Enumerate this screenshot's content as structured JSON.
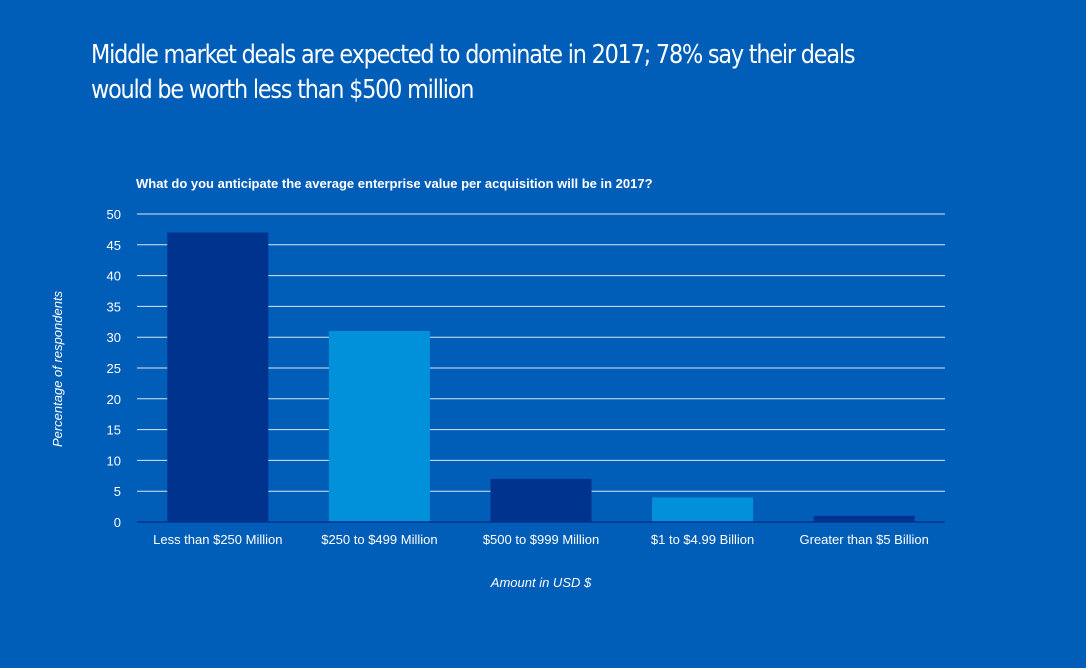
{
  "headline": "Middle market deals are expected to dominate in 2017; 78% say their deals would be worth less than $500 million",
  "colors": {
    "background": "#005eb8",
    "bar_dark": "#00338d",
    "bar_light": "#0091da",
    "text": "#ffffff"
  },
  "chart_data": {
    "type": "bar",
    "title": "What do you anticipate the average enterprise value per acquisition will be in 2017?",
    "xlabel": "Amount in USD $",
    "ylabel": "Percentage of respondents",
    "categories": [
      "Less than $250 Million",
      "$250 to $499 Million",
      "$500 to $999 Million",
      "$1 to $4.99 Billion",
      "Greater than $5 Billion"
    ],
    "values": [
      47,
      31,
      7,
      4,
      1
    ],
    "bar_colors": [
      "#00338d",
      "#0091da",
      "#00338d",
      "#0091da",
      "#00338d"
    ],
    "ylim": [
      0,
      50
    ],
    "yticks": [
      "0",
      "5",
      "10",
      "15",
      "20",
      "25",
      "30",
      "35",
      "40",
      "45",
      "50"
    ],
    "grid": true,
    "legend": "none"
  }
}
